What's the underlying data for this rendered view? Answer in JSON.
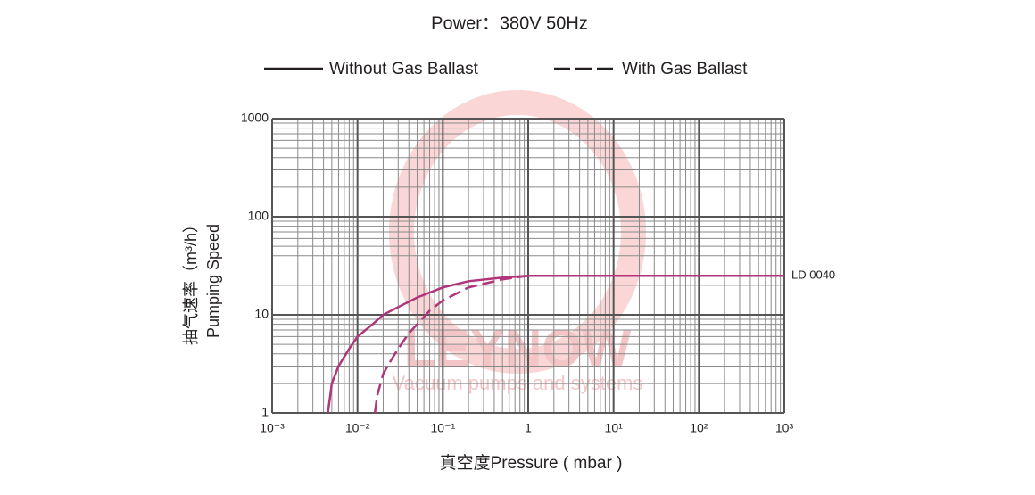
{
  "chart_data": {
    "type": "line",
    "title": "Power：380V 50Hz",
    "xlabel": "真空度Pressure ( mbar )",
    "ylabel": [
      "抽气速率（m³/h）",
      "Pumping Speed"
    ],
    "annotation": "LD 0040",
    "watermark": [
      "LEYNOW",
      "Vacuum pumps and systems"
    ],
    "log_x": true,
    "log_y": true,
    "grid": true,
    "legend": "top",
    "legend_color": "#231f20",
    "xlim": [
      0.001,
      1000
    ],
    "ylim": [
      1,
      1000
    ],
    "xticks": [
      {
        "value": 0.001,
        "label": "10⁻³"
      },
      {
        "value": 0.01,
        "label": "10⁻²"
      },
      {
        "value": 0.1,
        "label": "10⁻¹"
      },
      1,
      {
        "value": 10,
        "label": "10¹"
      },
      {
        "value": 100,
        "label": "10²"
      },
      {
        "value": 1000,
        "label": "10³"
      }
    ],
    "yticks": [
      1,
      10,
      100,
      1000
    ],
    "xminor": [
      0.002,
      0.003,
      0.004,
      0.005,
      0.006,
      0.007,
      0.008,
      0.009,
      0.02,
      0.03,
      0.04,
      0.05,
      0.06,
      0.07,
      0.08,
      0.09,
      0.2,
      0.3,
      0.4,
      0.5,
      0.6,
      0.7,
      0.8,
      0.9,
      2,
      3,
      4,
      5,
      6,
      7,
      8,
      9,
      20,
      30,
      40,
      50,
      60,
      70,
      80,
      90,
      200,
      300,
      400,
      500,
      600,
      700,
      800,
      900
    ],
    "yminor": [
      2,
      3,
      4,
      5,
      6,
      7,
      8,
      9,
      20,
      30,
      40,
      50,
      60,
      70,
      80,
      90,
      200,
      300,
      400,
      500,
      600,
      700,
      800,
      900
    ],
    "series": [
      {
        "name": "Without Gas Ballast",
        "color": "#b0357a",
        "dash": false,
        "x": [
          0.0045,
          0.005,
          0.006,
          0.008,
          0.01,
          0.015,
          0.02,
          0.03,
          0.05,
          0.1,
          0.2,
          0.5,
          1,
          1000
        ],
        "values": [
          1,
          2,
          3,
          4.5,
          6,
          8,
          10,
          12,
          15,
          19,
          22,
          24,
          25,
          25
        ]
      },
      {
        "name": "With Gas Ballast",
        "color": "#b0357a",
        "dash": true,
        "x": [
          0.016,
          0.017,
          0.02,
          0.025,
          0.03,
          0.04,
          0.05,
          0.07,
          0.1,
          0.2,
          0.5,
          1
        ],
        "values": [
          1,
          1.5,
          2.5,
          3.5,
          4.5,
          6.5,
          8,
          11,
          14,
          19,
          23,
          25
        ]
      }
    ]
  }
}
